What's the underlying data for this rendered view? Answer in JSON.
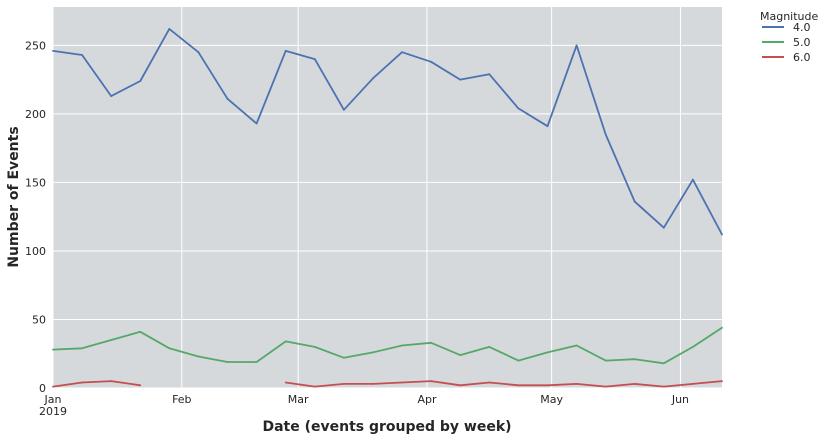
{
  "chart_data": {
    "type": "line",
    "xlabel": "Date (events grouped by week)",
    "ylabel": "Number of Events",
    "ylim": [
      0,
      278
    ],
    "yticks": [
      0,
      50,
      100,
      150,
      200,
      250
    ],
    "x": [
      "2019-01-01",
      "2019-01-08",
      "2019-01-15",
      "2019-01-22",
      "2019-01-29",
      "2019-02-05",
      "2019-02-12",
      "2019-02-19",
      "2019-02-26",
      "2019-03-05",
      "2019-03-12",
      "2019-03-19",
      "2019-03-26",
      "2019-04-02",
      "2019-04-09",
      "2019-04-16",
      "2019-04-23",
      "2019-04-30",
      "2019-05-07",
      "2019-05-14",
      "2019-05-21",
      "2019-05-28",
      "2019-06-04",
      "2019-06-11"
    ],
    "xlim": [
      "2019-01-01",
      "2019-06-11"
    ],
    "xticks": [
      {
        "date": "2019-01-01",
        "label": "Jan",
        "sublabel": "2019"
      },
      {
        "date": "2019-02-01",
        "label": "Feb",
        "sublabel": ""
      },
      {
        "date": "2019-03-01",
        "label": "Mar",
        "sublabel": ""
      },
      {
        "date": "2019-04-01",
        "label": "Apr",
        "sublabel": ""
      },
      {
        "date": "2019-05-01",
        "label": "May",
        "sublabel": ""
      },
      {
        "date": "2019-06-01",
        "label": "Jun",
        "sublabel": ""
      }
    ],
    "series": [
      {
        "name": "4.0",
        "color": "#4c72b0",
        "values": [
          246,
          243,
          213,
          224,
          262,
          245,
          211,
          193,
          246,
          240,
          203,
          226,
          245,
          238,
          225,
          229,
          204,
          191,
          250,
          185,
          136,
          117,
          152,
          112
        ]
      },
      {
        "name": "5.0",
        "color": "#55a868",
        "values": [
          28,
          29,
          35,
          41,
          29,
          23,
          19,
          19,
          34,
          30,
          22,
          26,
          31,
          33,
          24,
          30,
          20,
          26,
          31,
          20,
          21,
          18,
          30,
          44
        ]
      },
      {
        "name": "6.0",
        "color": "#c44e52",
        "values": [
          1,
          4,
          5,
          2,
          null,
          null,
          null,
          null,
          4,
          1,
          3,
          3,
          4,
          5,
          2,
          4,
          2,
          2,
          3,
          1,
          3,
          1,
          3,
          5
        ]
      }
    ],
    "legend": {
      "title": "Magnitude",
      "placement": "outside-top-right"
    },
    "grid": true,
    "background": "#d5d9dc"
  }
}
